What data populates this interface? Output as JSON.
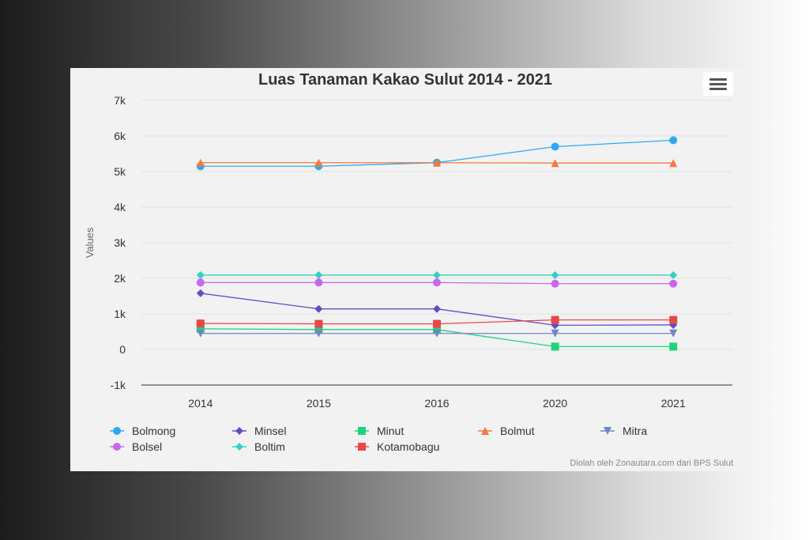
{
  "credit": "Diolah oleh Zonautara.com dari BPS Sulut",
  "menu_icon": "hamburger-menu-icon",
  "chart_data": {
    "type": "line",
    "title": "Luas Tanaman Kakao Sulut 2014 - 2021",
    "xlabel": "",
    "ylabel": "Values",
    "categories": [
      "2014",
      "2015",
      "2016",
      "2020",
      "2021"
    ],
    "ylim": [
      -1000,
      7000
    ],
    "yticks": [
      -1000,
      0,
      1000,
      2000,
      3000,
      4000,
      5000,
      6000,
      7000
    ],
    "ytick_labels": [
      "-1k",
      "0",
      "1k",
      "2k",
      "3k",
      "4k",
      "5k",
      "6k",
      "7k"
    ],
    "grid": true,
    "legend_position": "bottom",
    "series": [
      {
        "name": "Bolmong",
        "color": "#2fa8f2",
        "marker": "circle",
        "values": [
          5150,
          5150,
          5250,
          5700,
          5880
        ]
      },
      {
        "name": "Minsel",
        "color": "#5c4fc7",
        "marker": "diamond",
        "values": [
          1580,
          1140,
          1140,
          680,
          690
        ]
      },
      {
        "name": "Minut",
        "color": "#1ed47a",
        "marker": "square",
        "values": [
          580,
          560,
          560,
          80,
          80
        ]
      },
      {
        "name": "Bolmut",
        "color": "#f47a3c",
        "marker": "triangle",
        "values": [
          5250,
          5250,
          5250,
          5240,
          5240
        ]
      },
      {
        "name": "Mitra",
        "color": "#6f86c2",
        "marker": "triangle-down",
        "values": [
          450,
          450,
          450,
          450,
          450
        ]
      },
      {
        "name": "Bolsel",
        "color": "#c966ee",
        "marker": "circle",
        "values": [
          1880,
          1880,
          1880,
          1850,
          1850
        ]
      },
      {
        "name": "Boltim",
        "color": "#30d2c8",
        "marker": "diamond",
        "values": [
          2090,
          2090,
          2090,
          2090,
          2090
        ]
      },
      {
        "name": "Kotamobagu",
        "color": "#e84848",
        "marker": "square",
        "values": [
          730,
          720,
          720,
          830,
          830
        ]
      }
    ]
  }
}
